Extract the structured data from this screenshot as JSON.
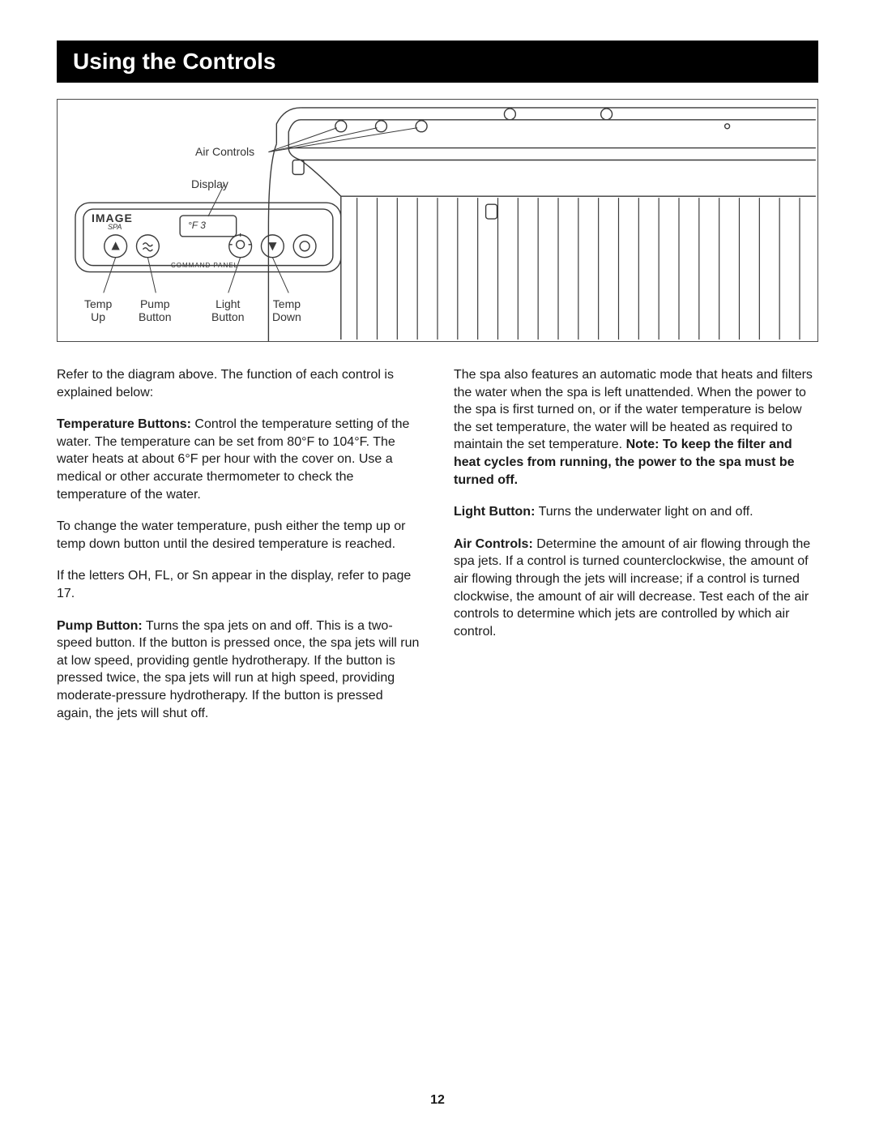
{
  "title": "Using the Controls",
  "page_number": "12",
  "diagram": {
    "labels": {
      "air_controls": "Air Controls",
      "display": "Display",
      "temp_up": "Temp\nUp",
      "pump_button": "Pump\nButton",
      "light_button": "Light\nButton",
      "temp_down": "Temp\nDown",
      "panel_brand": "IMAGE",
      "panel_sub": "SPA",
      "panel_text": "COMMAND PANEL",
      "display_text": "°F 3"
    },
    "stroke_color": "#3a3a3a",
    "stroke_width": 1.4,
    "background": "#ffffff"
  },
  "body": {
    "left": [
      {
        "type": "p",
        "runs": [
          {
            "t": "Refer to the diagram above. The function of each control is explained below:"
          }
        ]
      },
      {
        "type": "p",
        "runs": [
          {
            "t": "Temperature Buttons:",
            "b": true
          },
          {
            "t": " Control the temperature setting of the water. The temperature can be set from 80°F to 104°F. The water heats at about 6°F per hour with the cover on. Use a medical or other accurate thermometer to check the temperature of the water."
          }
        ]
      },
      {
        "type": "p",
        "runs": [
          {
            "t": "To change the water temperature, push either the temp up or temp down button until the desired temperature is reached."
          }
        ]
      },
      {
        "type": "p",
        "runs": [
          {
            "t": "If the letters OH, FL, or Sn appear in the display, refer to page 17."
          }
        ]
      },
      {
        "type": "p",
        "runs": [
          {
            "t": "Pump Button:",
            "b": true
          },
          {
            "t": " Turns the spa jets on and off. This is a two-speed button. If the button is pressed once, the spa jets will run at low speed, providing gentle hydrotherapy. If the button is pressed twice, the spa jets will run at high speed, providing moderate-pressure hydrotherapy. If the button is pressed again, the jets will shut off."
          }
        ]
      }
    ],
    "right": [
      {
        "type": "p",
        "runs": [
          {
            "t": "The spa also features an automatic mode that heats and filters the water when the spa is left unattended. When the power to the spa is first turned on, or if the water temperature is below the set temperature, the water will be heated as required to maintain the set temperature. "
          },
          {
            "t": "Note: To keep the filter and heat cycles from running, the power to the spa must be turned off.",
            "b": true
          }
        ]
      },
      {
        "type": "p",
        "runs": [
          {
            "t": "Light Button:",
            "b": true
          },
          {
            "t": " Turns the underwater light on and off."
          }
        ]
      },
      {
        "type": "p",
        "runs": [
          {
            "t": "Air Controls:",
            "b": true
          },
          {
            "t": " Determine the amount of air flowing through the spa jets. If a control is turned counterclockwise, the amount of air flowing through the jets will increase; if a control is turned clockwise, the amount of air will decrease. Test each of the air controls to determine which jets are controlled by which air control."
          }
        ]
      }
    ]
  }
}
